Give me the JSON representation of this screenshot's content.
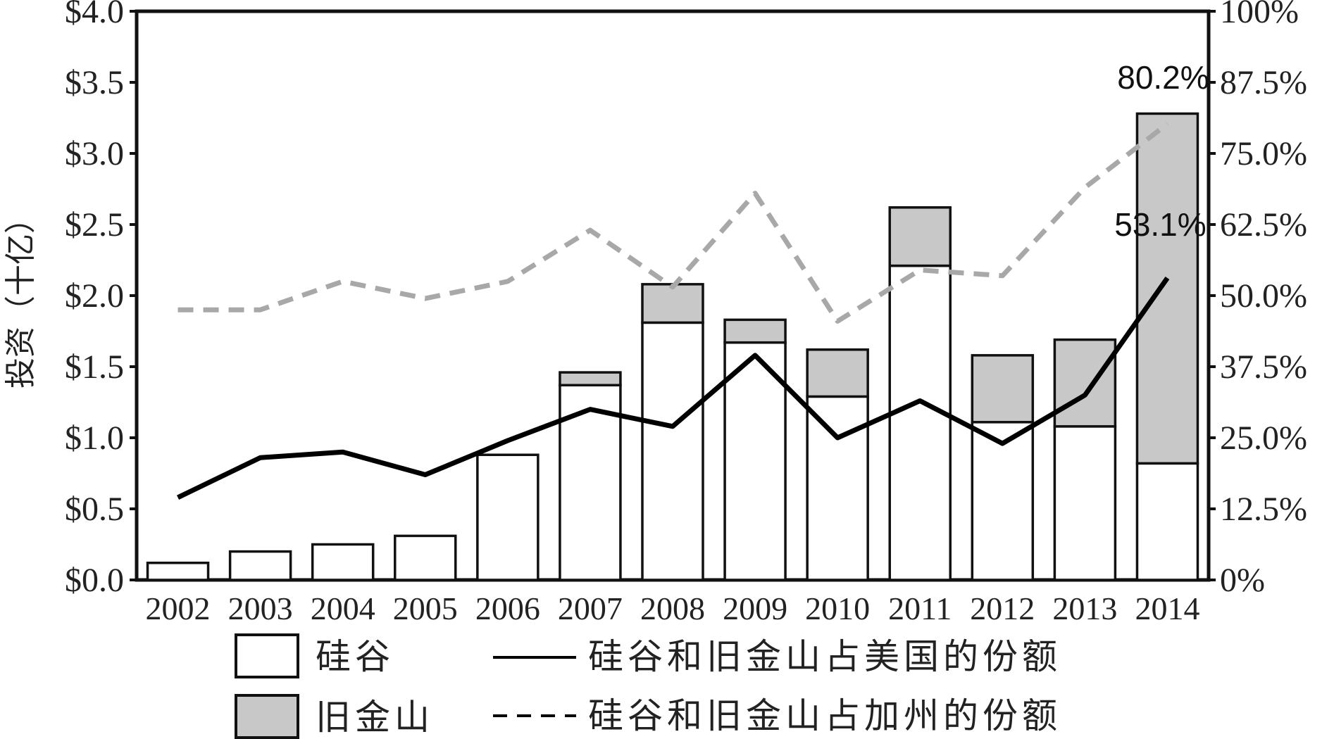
{
  "chart_data": {
    "type": "bar",
    "title": "",
    "ylabel": "投资（十亿）",
    "categories": [
      "2002",
      "2003",
      "2004",
      "2005",
      "2006",
      "2007",
      "2008",
      "2009",
      "2010",
      "2011",
      "2012",
      "2013",
      "2014"
    ],
    "series": [
      {
        "name": "硅谷",
        "kind": "bar",
        "axis": "left",
        "color": "#ffffff",
        "values": [
          0.12,
          0.2,
          0.25,
          0.31,
          0.88,
          1.37,
          1.81,
          1.67,
          1.29,
          2.21,
          1.11,
          1.08,
          0.82
        ]
      },
      {
        "name": "旧金山",
        "kind": "bar",
        "axis": "left",
        "color": "#c8c8c8",
        "values": [
          0,
          0,
          0,
          0,
          0,
          0.09,
          0.27,
          0.16,
          0.33,
          0.41,
          0.47,
          0.61,
          2.46
        ]
      },
      {
        "name": "硅谷和旧金山占美国的份额",
        "kind": "line",
        "axis": "right",
        "color": "#000000",
        "dash": "solid",
        "values": [
          14.5,
          21.5,
          22.5,
          18.5,
          24.5,
          30.0,
          27.0,
          39.5,
          25.0,
          31.5,
          24.0,
          32.5,
          53.1
        ]
      },
      {
        "name": "硅谷和旧金山占加州的份额",
        "kind": "line",
        "axis": "right",
        "color": "#a8a8a8",
        "dash": "dashed",
        "values": [
          47.5,
          47.5,
          52.5,
          49.5,
          52.5,
          61.5,
          51.5,
          68.0,
          45.5,
          54.5,
          53.5,
          69.0,
          80.2
        ]
      }
    ],
    "ylim": [
      0,
      4.0
    ],
    "yticks": [
      "$0.0",
      "$0.5",
      "$1.0",
      "$1.5",
      "$2.0",
      "$2.5",
      "$3.0",
      "$3.5",
      "$4.0"
    ],
    "y2lim": [
      0,
      100
    ],
    "y2ticks": [
      "0%",
      "12.5%",
      "25.0%",
      "37.5%",
      "50.0%",
      "62.5%",
      "75.0%",
      "87.5%",
      "100%"
    ],
    "annotations": [
      "53.1%",
      "80.2%"
    ],
    "grid": false,
    "legend": "bottom"
  }
}
